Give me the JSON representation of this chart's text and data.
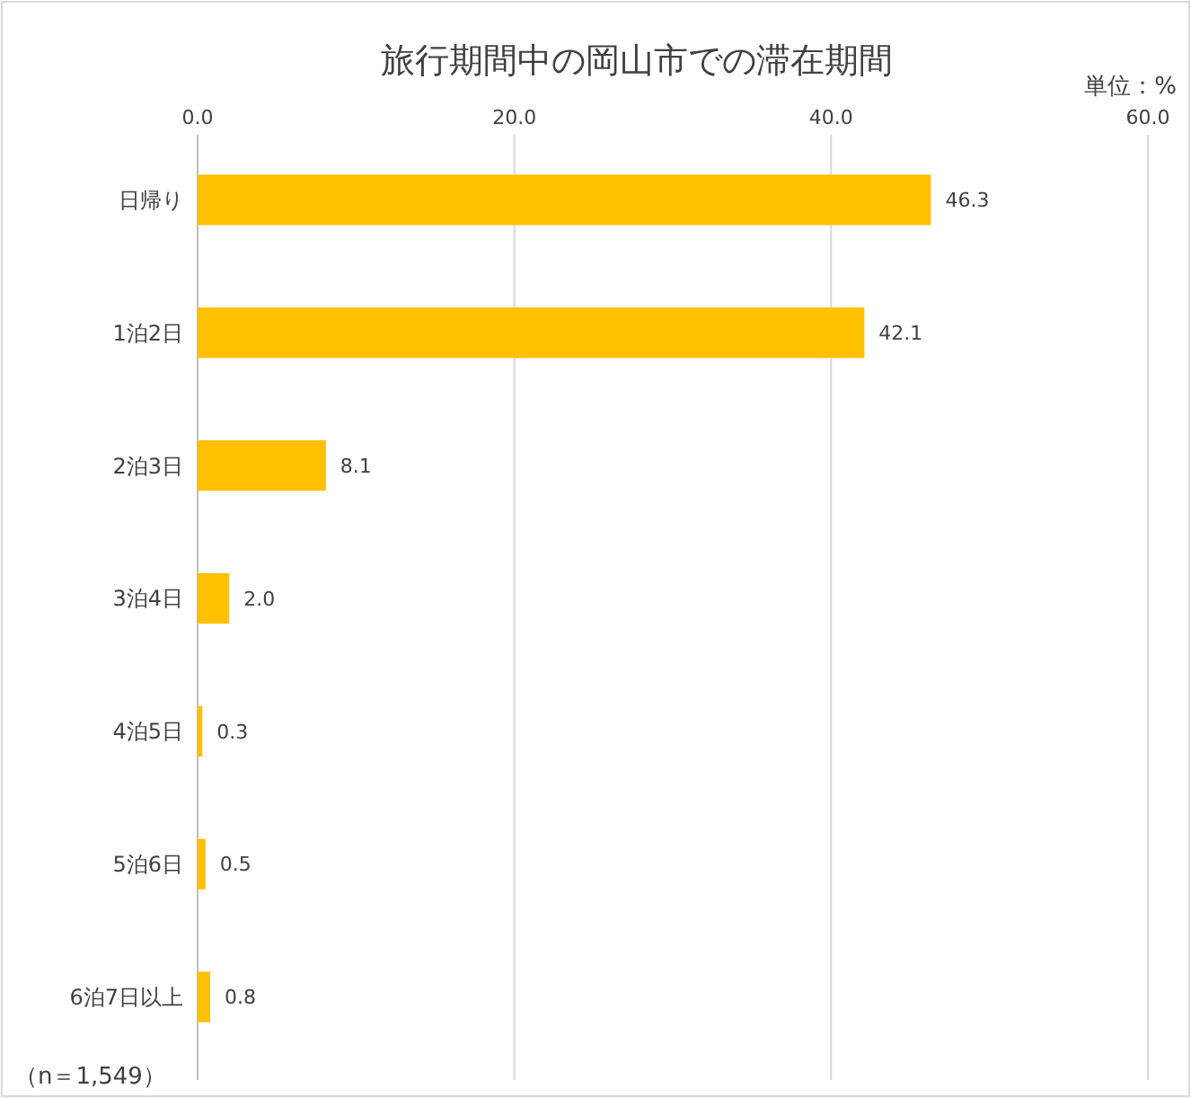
{
  "chart_data": {
    "type": "bar",
    "orientation": "horizontal",
    "title": "旅行期間中の岡山市での滞在期間",
    "categories": [
      "日帰り",
      "1泊2日",
      "2泊3日",
      "3泊4日",
      "4泊5日",
      "5泊6日",
      "6泊7日以上"
    ],
    "values": [
      46.3,
      42.1,
      8.1,
      2.0,
      0.3,
      0.5,
      0.8
    ],
    "value_labels": [
      "46.3",
      "42.1",
      "8.1",
      "2.0",
      "0.3",
      "0.5",
      "0.8"
    ],
    "color": "#ffc000",
    "xlim": [
      0,
      60
    ],
    "xticks": [
      {
        "value": 0,
        "label": "0.0"
      },
      {
        "value": 20,
        "label": "20.0"
      },
      {
        "value": 40,
        "label": "40.0"
      },
      {
        "value": 60,
        "label": "60.0"
      }
    ],
    "grid": "x",
    "annotations": [
      "単位：%",
      "（n＝1,549）"
    ]
  }
}
